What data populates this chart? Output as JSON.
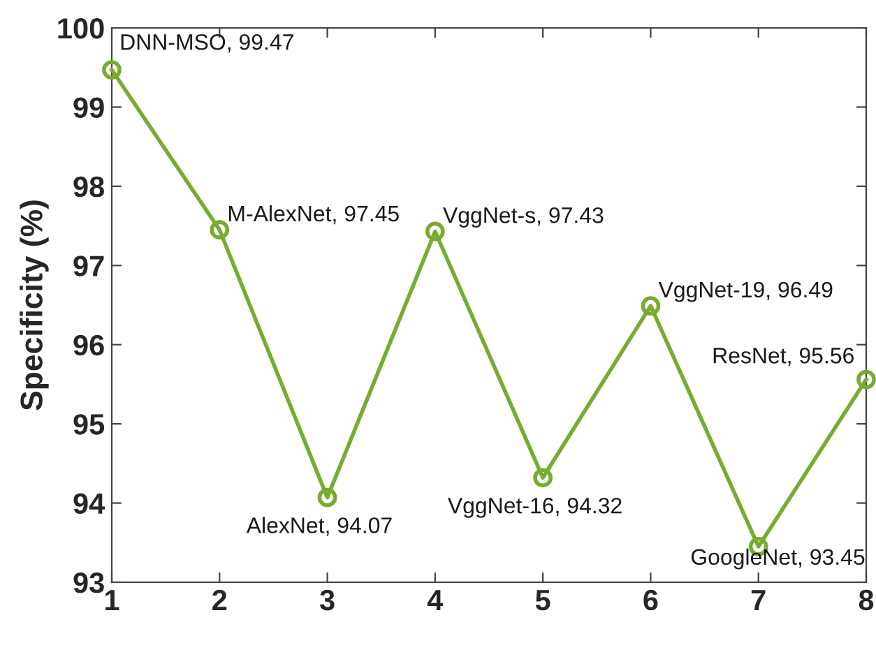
{
  "chart_data": {
    "type": "line",
    "ylabel": "Specificity (%)",
    "x": [
      1,
      2,
      3,
      4,
      5,
      6,
      7,
      8
    ],
    "series": [
      {
        "color": "#77ac30",
        "values": [
          99.47,
          97.45,
          94.07,
          97.43,
          94.32,
          96.49,
          93.45,
          95.56
        ]
      }
    ],
    "xlim": [
      1,
      8
    ],
    "xticks": [
      1,
      2,
      3,
      4,
      5,
      6,
      7,
      8
    ],
    "ylim": [
      93,
      100
    ],
    "yticks": [
      93,
      94,
      95,
      96,
      97,
      98,
      99,
      100
    ],
    "grid": false,
    "marker": "circle",
    "line_style": "solid",
    "annotations": [
      {
        "text": "DNN-MSO, 99.47",
        "x": 1,
        "y": 99.47
      },
      {
        "text": "M-AlexNet, 97.45",
        "x": 2,
        "y": 97.45
      },
      {
        "text": "AlexNet, 94.07",
        "x": 3,
        "y": 94.07
      },
      {
        "text": "VggNet-s, 97.43",
        "x": 4,
        "y": 97.43
      },
      {
        "text": "VggNet-16, 94.32",
        "x": 5,
        "y": 94.32
      },
      {
        "text": "VggNet-19, 96.49",
        "x": 6,
        "y": 96.49
      },
      {
        "text": "GoogleNet, 93.45",
        "x": 7,
        "y": 93.45
      },
      {
        "text": "ResNet, 95.56",
        "x": 8,
        "y": 95.56
      }
    ]
  }
}
